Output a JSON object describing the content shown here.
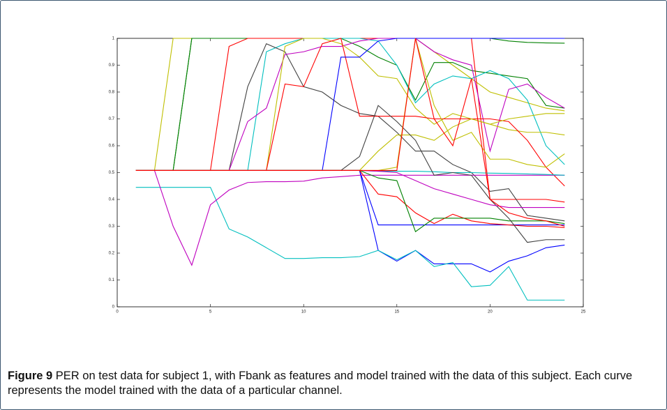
{
  "chart_data": {
    "type": "line",
    "x": [
      1,
      2,
      3,
      4,
      5,
      6,
      7,
      8,
      9,
      10,
      11,
      12,
      13,
      14,
      15,
      16,
      17,
      18,
      19,
      20,
      21,
      22,
      23,
      24
    ],
    "xlim": [
      0,
      25
    ],
    "xticks": [
      0,
      5,
      10,
      15,
      20,
      25
    ],
    "ylim": [
      0,
      1
    ],
    "yticks": [
      0,
      0.1,
      0.2,
      0.3,
      0.4,
      0.5,
      0.6,
      0.7,
      0.8,
      0.9,
      1
    ],
    "series": [
      {
        "color": "#bfbf00",
        "values": [
          0.508,
          0.508,
          1,
          1,
          1,
          1,
          1,
          1,
          1,
          1,
          1,
          1,
          1,
          1,
          1,
          1,
          0.95,
          0.9,
          0.85,
          0.8,
          0.78,
          0.76,
          0.74,
          0.73
        ]
      },
      {
        "color": "#008000",
        "values": [
          0.508,
          0.508,
          0.508,
          1,
          1,
          1,
          1,
          1,
          1,
          1,
          1,
          1,
          1,
          1,
          1,
          1,
          1,
          1,
          1,
          1,
          0.99,
          0.985,
          0.983,
          0.982
        ]
      },
      {
        "color": "#008000",
        "values": [
          0.508,
          0.508,
          0.508,
          1,
          1,
          1,
          1,
          1,
          1,
          1,
          1,
          1,
          0.97,
          0.93,
          0.9,
          0.77,
          0.91,
          0.91,
          0.88,
          0.87,
          0.86,
          0.85,
          0.75,
          0.74
        ]
      },
      {
        "color": "#ff0000",
        "values": [
          0.508,
          0.508,
          0.508,
          0.508,
          0.508,
          0.97,
          1,
          1,
          1,
          1,
          1,
          1,
          1,
          1,
          1,
          1,
          1,
          1,
          1,
          0.4,
          0.4,
          0.4,
          0.4,
          0.39
        ]
      },
      {
        "color": "#00bfbf",
        "values": [
          0.508,
          0.508,
          0.508,
          0.508,
          0.508,
          0.508,
          0.508,
          0.95,
          0.98,
          1,
          1,
          1,
          1,
          0.99,
          0.9,
          0.76,
          0.83,
          0.86,
          0.85,
          0.88,
          0.85,
          0.77,
          0.6,
          0.53
        ]
      },
      {
        "color": "#404040",
        "values": [
          0.508,
          0.508,
          0.508,
          0.508,
          0.508,
          0.508,
          0.82,
          0.98,
          0.95,
          0.82,
          0.8,
          0.75,
          0.72,
          0.71,
          0.65,
          0.58,
          0.58,
          0.53,
          0.5,
          0.43,
          0.44,
          0.34,
          0.33,
          0.32
        ]
      },
      {
        "color": "#bf00bf",
        "values": [
          0.508,
          0.508,
          0.508,
          0.508,
          0.508,
          0.508,
          0.69,
          0.74,
          0.94,
          0.95,
          0.97,
          0.97,
          0.99,
          1,
          1,
          1,
          0.95,
          0.92,
          0.9,
          0.58,
          0.81,
          0.83,
          0.78,
          0.74
        ]
      },
      {
        "color": "#bfbf00",
        "values": [
          0.508,
          0.508,
          0.508,
          0.508,
          0.508,
          0.508,
          0.508,
          0.508,
          0.97,
          1,
          1,
          0.98,
          0.93,
          0.86,
          0.85,
          0.74,
          0.68,
          0.72,
          0.7,
          0.68,
          0.66,
          0.65,
          0.65,
          0.64
        ]
      },
      {
        "color": "#ff0000",
        "values": [
          0.508,
          0.508,
          0.508,
          0.508,
          0.508,
          0.508,
          0.508,
          0.508,
          0.83,
          0.82,
          0.98,
          1,
          0.71,
          0.71,
          0.71,
          0.71,
          0.7,
          0.7,
          0.7,
          0.7,
          0.69,
          0.62,
          0.52,
          0.45
        ]
      },
      {
        "color": "#0000ff",
        "values": [
          0.508,
          0.508,
          0.508,
          0.508,
          0.508,
          0.508,
          0.508,
          0.508,
          0.508,
          0.508,
          0.508,
          0.93,
          0.93,
          0.99,
          1,
          1,
          1,
          1,
          1,
          1,
          1,
          1,
          1,
          1
        ]
      },
      {
        "color": "#0000ff",
        "values": [
          0.508,
          0.508,
          0.508,
          0.508,
          0.508,
          0.508,
          0.508,
          0.508,
          0.508,
          0.508,
          0.508,
          0.508,
          0.508,
          0.305,
          0.305,
          0.305,
          0.305,
          0.305,
          0.305,
          0.305,
          0.305,
          0.305,
          0.305,
          0.305
        ]
      },
      {
        "color": "#0000ff",
        "values": [
          0.508,
          0.508,
          0.508,
          0.508,
          0.508,
          0.508,
          0.508,
          0.508,
          0.508,
          0.508,
          0.508,
          0.508,
          0.508,
          0.21,
          0.17,
          0.21,
          0.16,
          0.16,
          0.16,
          0.13,
          0.17,
          0.19,
          0.22,
          0.23
        ]
      },
      {
        "color": "#00bfbf",
        "values": [
          0.445,
          0.445,
          0.445,
          0.445,
          0.445,
          0.29,
          0.26,
          0.22,
          0.18,
          0.18,
          0.183,
          0.183,
          0.187,
          0.21,
          0.175,
          0.21,
          0.15,
          0.165,
          0.075,
          0.08,
          0.15,
          0.025,
          0.025,
          0.025
        ]
      },
      {
        "color": "#bf00bf",
        "values": [
          0.508,
          0.508,
          0.3,
          0.155,
          0.38,
          0.435,
          0.463,
          0.466,
          0.466,
          0.468,
          0.48,
          0.485,
          0.49,
          0.49,
          0.49,
          0.49,
          0.49,
          0.49,
          0.49,
          0.49,
          0.49,
          0.49,
          0.49,
          0.49
        ]
      },
      {
        "color": "#00bfbf",
        "values": [
          0.508,
          0.508,
          0.508,
          0.508,
          0.508,
          0.508,
          0.508,
          0.508,
          0.508,
          0.508,
          0.508,
          0.508,
          0.508,
          0.505,
          0.505,
          0.505,
          0.503,
          0.5,
          0.5,
          0.498,
          0.497,
          0.495,
          0.493,
          0.49
        ]
      },
      {
        "color": "#bfbf00",
        "values": [
          0.508,
          0.508,
          0.508,
          0.508,
          0.508,
          0.508,
          0.508,
          0.508,
          0.508,
          0.508,
          0.508,
          0.508,
          0.508,
          0.58,
          0.64,
          0.64,
          0.62,
          0.67,
          0.7,
          0.68,
          0.7,
          0.71,
          0.72,
          0.72
        ]
      },
      {
        "color": "#ff0000",
        "values": [
          0.508,
          0.508,
          0.508,
          0.508,
          0.508,
          0.508,
          0.508,
          0.508,
          0.508,
          0.508,
          0.508,
          0.508,
          0.508,
          0.42,
          0.41,
          0.35,
          0.31,
          0.345,
          0.32,
          0.31,
          0.305,
          0.3,
          0.3,
          0.295
        ]
      },
      {
        "color": "#008000",
        "values": [
          0.508,
          0.508,
          0.508,
          0.508,
          0.508,
          0.508,
          0.508,
          0.508,
          0.508,
          0.508,
          0.508,
          0.508,
          0.508,
          0.48,
          0.47,
          0.28,
          0.33,
          0.33,
          0.33,
          0.33,
          0.32,
          0.32,
          0.32,
          0.31
        ]
      },
      {
        "color": "#404040",
        "values": [
          0.508,
          0.508,
          0.508,
          0.508,
          0.508,
          0.508,
          0.508,
          0.508,
          0.508,
          0.508,
          0.508,
          0.508,
          0.56,
          0.75,
          0.69,
          0.62,
          0.49,
          0.5,
          0.49,
          0.4,
          0.33,
          0.24,
          0.25,
          0.25
        ]
      },
      {
        "color": "#bf00bf",
        "values": [
          0.508,
          0.508,
          0.508,
          0.508,
          0.508,
          0.508,
          0.508,
          0.508,
          0.508,
          0.508,
          0.508,
          0.508,
          0.508,
          0.505,
          0.5,
          0.47,
          0.44,
          0.42,
          0.4,
          0.38,
          0.37,
          0.37,
          0.37,
          0.37
        ]
      },
      {
        "color": "#bfbf00",
        "values": [
          0.508,
          0.508,
          0.508,
          0.508,
          0.508,
          0.508,
          0.508,
          0.508,
          0.508,
          0.508,
          0.508,
          0.508,
          0.508,
          0.508,
          0.52,
          1,
          0.75,
          0.62,
          0.65,
          0.55,
          0.55,
          0.53,
          0.52,
          0.57
        ]
      },
      {
        "color": "#ff0000",
        "values": [
          0.508,
          0.508,
          0.508,
          0.508,
          0.508,
          0.508,
          0.508,
          0.508,
          0.508,
          0.508,
          0.508,
          0.508,
          0.508,
          0.508,
          0.508,
          1,
          0.7,
          0.6,
          0.85,
          0.4,
          0.35,
          0.33,
          0.32,
          0.3
        ]
      }
    ]
  },
  "caption": {
    "label": "Figure 9",
    "text": "PER on test data for subject 1, with Fbank as features and model trained with the data of this subject. Each curve represents the model trained with the data of a particular channel."
  }
}
